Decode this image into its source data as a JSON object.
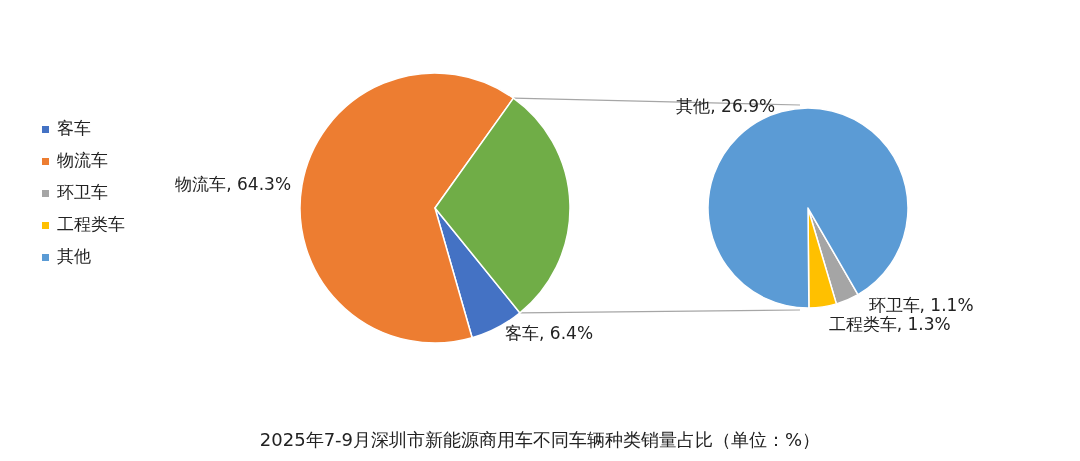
{
  "chart_data": [
    {
      "type": "pie",
      "title": "2025年7-9月深圳市新能源商用车不同车辆种类销量占比（单位：%）",
      "legend": "left",
      "categories": [
        "客车",
        "物流车",
        null
      ],
      "values": [
        6.4,
        64.3,
        29.3
      ],
      "colors": [
        "#4472c4",
        "#ed7d31",
        "#70ad47"
      ],
      "value_labels": [
        "客车, 6.4%",
        "物流车, 64.3%",
        null
      ]
    },
    {
      "type": "pie",
      "legend": "left",
      "categories": [
        "环卫车",
        "工程类车",
        "其他"
      ],
      "values": [
        1.1,
        1.3,
        26.9
      ],
      "colors": [
        "#a5a5a5",
        "#ffc000",
        "#5b9bd5"
      ],
      "value_labels": [
        "环卫车, 1.1%",
        "工程类车, 1.3%",
        "其他, 26.9%"
      ]
    }
  ]
}
